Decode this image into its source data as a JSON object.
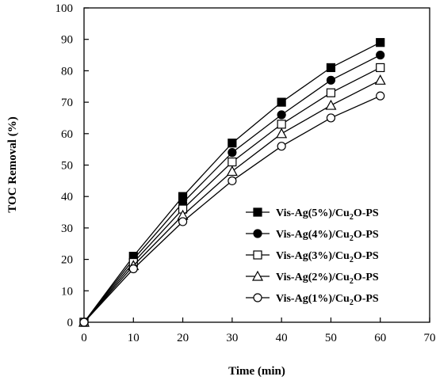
{
  "chart_data": {
    "type": "line",
    "title": "",
    "xlabel": "Time (min)",
    "ylabel": "TOC Removal (%)",
    "xlim": [
      0,
      70
    ],
    "ylim": [
      0,
      100
    ],
    "x_ticks": [
      0,
      10,
      20,
      30,
      40,
      50,
      60,
      70
    ],
    "y_ticks": [
      0,
      10,
      20,
      30,
      40,
      50,
      60,
      70,
      80,
      90,
      100
    ],
    "grid": false,
    "legend_position": "bottom-right",
    "x": [
      0,
      10,
      20,
      30,
      40,
      50,
      60
    ],
    "series": [
      {
        "name": "Vis-Ag(5%)/Cu2O-PS",
        "legend_pre": "Vis-Ag(5%)/Cu",
        "legend_sub": "2",
        "legend_post": "O-PS",
        "marker": "filled-square",
        "values": [
          0,
          21,
          40,
          57,
          70,
          81,
          89
        ]
      },
      {
        "name": "Vis-Ag(4%)/Cu2O-PS",
        "legend_pre": "Vis-Ag(4%)/Cu",
        "legend_sub": "2",
        "legend_post": "O-PS",
        "marker": "filled-circle",
        "values": [
          0,
          20,
          38,
          54,
          66,
          77,
          85
        ]
      },
      {
        "name": "Vis-Ag(3%)/Cu2O-PS",
        "legend_pre": "Vis-Ag(3%)/Cu",
        "legend_sub": "2",
        "legend_post": "O-PS",
        "marker": "open-square",
        "values": [
          0,
          19,
          36,
          51,
          63,
          73,
          81
        ]
      },
      {
        "name": "Vis-Ag(2%)/Cu2O-PS",
        "legend_pre": "Vis-Ag(2%)/Cu",
        "legend_sub": "2",
        "legend_post": "O-PS",
        "marker": "open-triangle",
        "values": [
          0,
          18,
          34,
          48,
          60,
          69,
          77
        ]
      },
      {
        "name": "Vis-Ag(1%)/Cu2O-PS",
        "legend_pre": "Vis-Ag(1%)/Cu",
        "legend_sub": "2",
        "legend_post": "O-PS",
        "marker": "open-circle",
        "values": [
          0,
          17,
          32,
          45,
          56,
          65,
          72
        ]
      }
    ]
  }
}
